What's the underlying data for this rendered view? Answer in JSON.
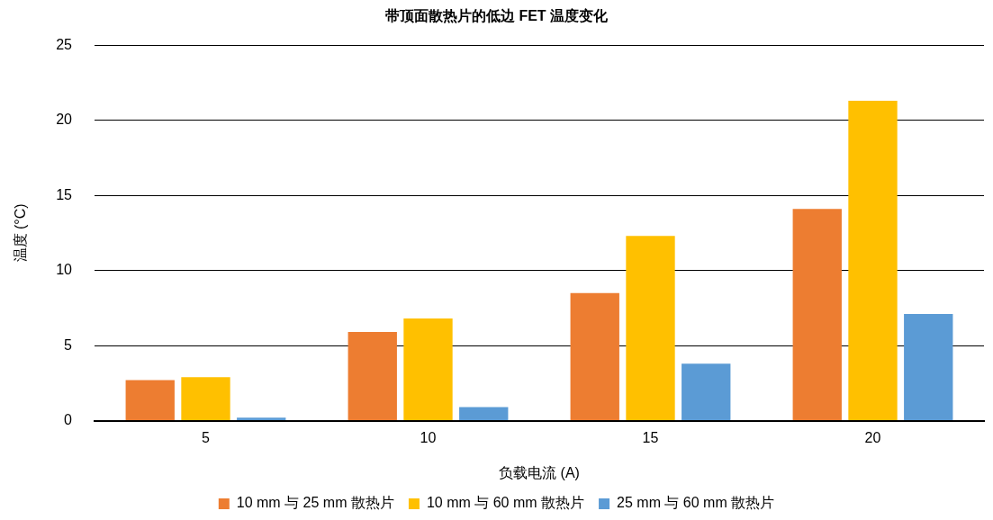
{
  "chart_data": {
    "type": "bar",
    "title": "带顶面散热片的低边 FET 温度变化",
    "xlabel": "负载电流 (A)",
    "ylabel": "温度 (°C)",
    "categories": [
      "5",
      "10",
      "15",
      "20"
    ],
    "series": [
      {
        "name": "10 mm 与 25 mm 散热片",
        "color": "#ed7d31",
        "values": [
          2.7,
          5.9,
          8.5,
          14.1
        ]
      },
      {
        "name": "10 mm 与 60 mm 散热片",
        "color": "#ffc000",
        "values": [
          2.9,
          6.8,
          12.3,
          21.3
        ]
      },
      {
        "name": "25 mm 与 60 mm 散热片",
        "color": "#5b9bd5",
        "values": [
          0.2,
          0.9,
          3.8,
          7.1
        ]
      }
    ],
    "ylim": [
      0,
      25
    ],
    "yticks": [
      0,
      5,
      10,
      15,
      20,
      25
    ],
    "grid": "y",
    "legend": "bottom"
  }
}
